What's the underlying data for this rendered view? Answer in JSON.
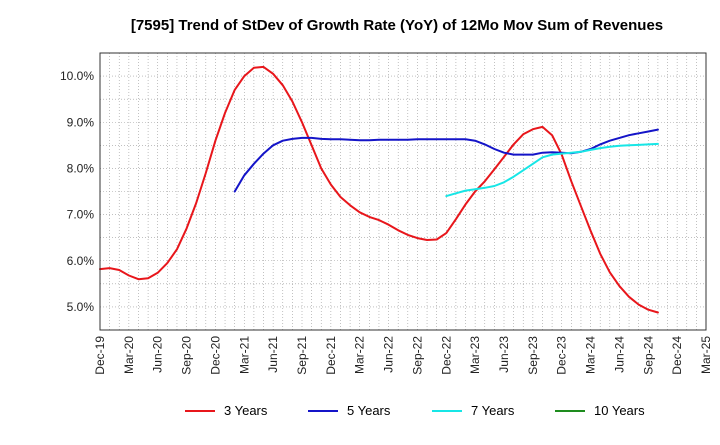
{
  "chart_data": {
    "type": "line",
    "title": "[7595]  Trend of StDev of Growth Rate (YoY) of 12Mo Mov Sum of Revenues",
    "xlabel": "",
    "ylabel": "",
    "x_ticks": [
      "Dec-19",
      "Mar-20",
      "Jun-20",
      "Sep-20",
      "Dec-20",
      "Mar-21",
      "Jun-21",
      "Sep-21",
      "Dec-21",
      "Mar-22",
      "Jun-22",
      "Sep-22",
      "Dec-22",
      "Mar-23",
      "Jun-23",
      "Sep-23",
      "Dec-23",
      "Mar-24",
      "Jun-24",
      "Sep-24",
      "Dec-24",
      "Mar-25"
    ],
    "y_ticks": [
      "5.0%",
      "6.0%",
      "7.0%",
      "8.0%",
      "9.0%",
      "10.0%"
    ],
    "y_tick_values": [
      5.0,
      6.0,
      7.0,
      8.0,
      9.0,
      10.0
    ],
    "xlim": [
      0,
      63
    ],
    "ylim": [
      4.5,
      10.5
    ],
    "grid": true,
    "x_unit": "months since Dec-19",
    "series": [
      {
        "name": "3 Years",
        "color": "#e8161b",
        "points": [
          [
            0,
            5.82
          ],
          [
            1,
            5.84
          ],
          [
            2,
            5.8
          ],
          [
            3,
            5.68
          ],
          [
            4,
            5.6
          ],
          [
            5,
            5.62
          ],
          [
            6,
            5.74
          ],
          [
            7,
            5.95
          ],
          [
            8,
            6.25
          ],
          [
            9,
            6.7
          ],
          [
            10,
            7.25
          ],
          [
            11,
            7.9
          ],
          [
            12,
            8.6
          ],
          [
            13,
            9.2
          ],
          [
            14,
            9.7
          ],
          [
            15,
            10.0
          ],
          [
            16,
            10.18
          ],
          [
            17,
            10.2
          ],
          [
            18,
            10.05
          ],
          [
            19,
            9.8
          ],
          [
            20,
            9.45
          ],
          [
            21,
            9.0
          ],
          [
            22,
            8.5
          ],
          [
            23,
            8.0
          ],
          [
            24,
            7.65
          ],
          [
            25,
            7.38
          ],
          [
            26,
            7.2
          ],
          [
            27,
            7.05
          ],
          [
            28,
            6.95
          ],
          [
            29,
            6.88
          ],
          [
            30,
            6.78
          ],
          [
            31,
            6.66
          ],
          [
            32,
            6.56
          ],
          [
            33,
            6.49
          ],
          [
            34,
            6.45
          ],
          [
            35,
            6.46
          ],
          [
            36,
            6.6
          ],
          [
            37,
            6.9
          ],
          [
            38,
            7.22
          ],
          [
            39,
            7.5
          ],
          [
            40,
            7.72
          ],
          [
            41,
            7.98
          ],
          [
            42,
            8.25
          ],
          [
            43,
            8.52
          ],
          [
            44,
            8.74
          ],
          [
            45,
            8.85
          ],
          [
            46,
            8.9
          ],
          [
            47,
            8.72
          ],
          [
            48,
            8.3
          ],
          [
            49,
            7.72
          ],
          [
            50,
            7.18
          ],
          [
            51,
            6.65
          ],
          [
            52,
            6.15
          ],
          [
            53,
            5.75
          ],
          [
            54,
            5.45
          ],
          [
            55,
            5.22
          ],
          [
            56,
            5.05
          ],
          [
            57,
            4.94
          ],
          [
            58,
            4.88
          ]
        ]
      },
      {
        "name": "5 Years",
        "color": "#1414c8",
        "points": [
          [
            14,
            7.5
          ],
          [
            15,
            7.85
          ],
          [
            16,
            8.1
          ],
          [
            17,
            8.32
          ],
          [
            18,
            8.5
          ],
          [
            19,
            8.6
          ],
          [
            20,
            8.64
          ],
          [
            21,
            8.66
          ],
          [
            22,
            8.66
          ],
          [
            23,
            8.64
          ],
          [
            24,
            8.63
          ],
          [
            25,
            8.63
          ],
          [
            26,
            8.62
          ],
          [
            27,
            8.61
          ],
          [
            28,
            8.61
          ],
          [
            29,
            8.62
          ],
          [
            30,
            8.62
          ],
          [
            31,
            8.62
          ],
          [
            32,
            8.62
          ],
          [
            33,
            8.63
          ],
          [
            34,
            8.63
          ],
          [
            35,
            8.63
          ],
          [
            36,
            8.63
          ],
          [
            37,
            8.63
          ],
          [
            38,
            8.63
          ],
          [
            39,
            8.6
          ],
          [
            40,
            8.52
          ],
          [
            41,
            8.42
          ],
          [
            42,
            8.34
          ],
          [
            43,
            8.3
          ],
          [
            44,
            8.3
          ],
          [
            45,
            8.3
          ],
          [
            46,
            8.34
          ],
          [
            47,
            8.35
          ],
          [
            48,
            8.34
          ],
          [
            49,
            8.33
          ],
          [
            50,
            8.36
          ],
          [
            51,
            8.42
          ],
          [
            52,
            8.52
          ],
          [
            53,
            8.6
          ],
          [
            54,
            8.66
          ],
          [
            55,
            8.72
          ],
          [
            56,
            8.76
          ],
          [
            57,
            8.8
          ],
          [
            58,
            8.84
          ]
        ]
      },
      {
        "name": "7 Years",
        "color": "#17e6e6",
        "points": [
          [
            36,
            7.4
          ],
          [
            37,
            7.46
          ],
          [
            38,
            7.52
          ],
          [
            39,
            7.55
          ],
          [
            40,
            7.58
          ],
          [
            41,
            7.62
          ],
          [
            42,
            7.7
          ],
          [
            43,
            7.82
          ],
          [
            44,
            7.96
          ],
          [
            45,
            8.1
          ],
          [
            46,
            8.24
          ],
          [
            47,
            8.3
          ],
          [
            48,
            8.32
          ],
          [
            49,
            8.34
          ],
          [
            50,
            8.36
          ],
          [
            51,
            8.4
          ],
          [
            52,
            8.44
          ],
          [
            53,
            8.47
          ],
          [
            54,
            8.49
          ],
          [
            55,
            8.5
          ],
          [
            56,
            8.51
          ],
          [
            57,
            8.52
          ],
          [
            58,
            8.53
          ]
        ]
      },
      {
        "name": "10 Years",
        "color": "#1e8c1e",
        "points": []
      }
    ]
  }
}
